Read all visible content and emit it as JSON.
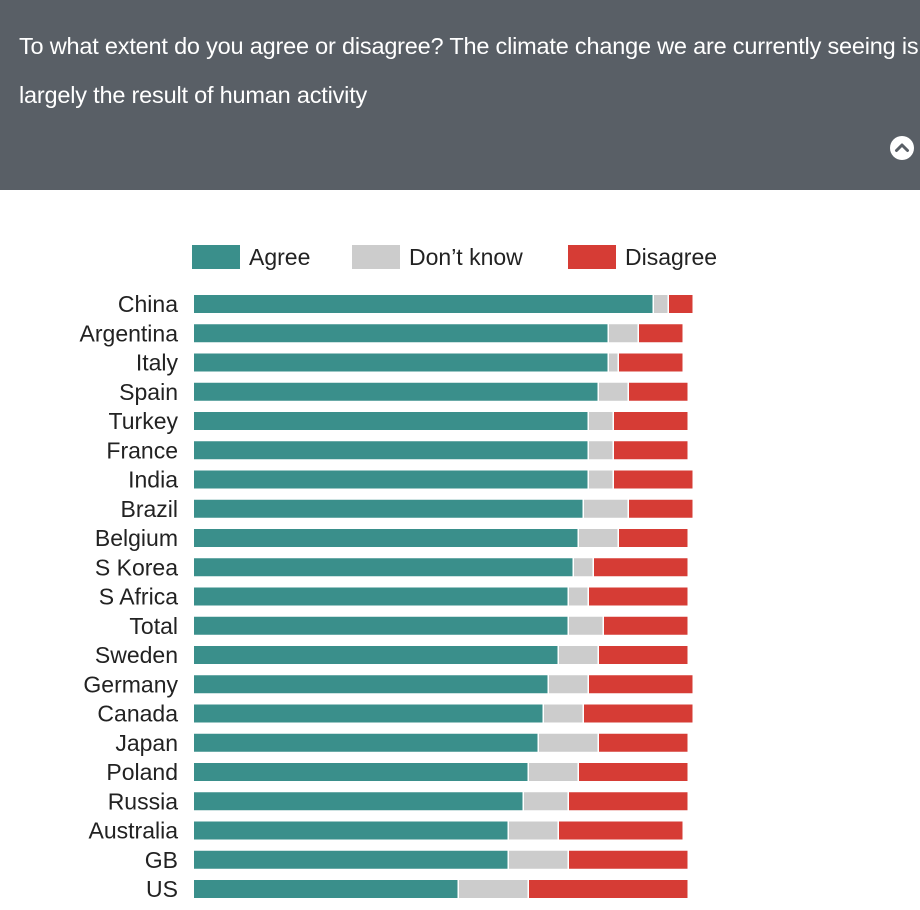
{
  "header": {
    "title": "To what extent do you agree or disagree? The climate change we are currently seeing is largely the result of human activity",
    "collapse_icon": "chevron-up-icon"
  },
  "legend": [
    {
      "label": "Agree",
      "color": "#3a8f8b"
    },
    {
      "label": "Don’t know",
      "color": "#cccccc"
    },
    {
      "label": "Disagree",
      "color": "#d63c35"
    }
  ],
  "chart_data": {
    "type": "bar",
    "orientation": "horizontal",
    "stacked": true,
    "title": "To what extent do you agree or disagree? The climate change we are currently seeing is largely the result of human activity",
    "categories": [
      "China",
      "Argentina",
      "Italy",
      "Spain",
      "Turkey",
      "France",
      "India",
      "Brazil",
      "Belgium",
      "S Korea",
      "S Africa",
      "Total",
      "Sweden",
      "Germany",
      "Canada",
      "Japan",
      "Poland",
      "Russia",
      "Australia",
      "GB",
      "US"
    ],
    "series": [
      {
        "name": "Agree",
        "color": "#3a8f8b",
        "values": [
          92,
          83,
          83,
          81,
          79,
          79,
          79,
          78,
          77,
          76,
          75,
          75,
          73,
          71,
          70,
          69,
          67,
          66,
          63,
          63,
          53
        ]
      },
      {
        "name": "Don’t know",
        "color": "#cccccc",
        "values": [
          3,
          6,
          2,
          6,
          5,
          5,
          5,
          9,
          8,
          4,
          4,
          7,
          8,
          8,
          8,
          12,
          10,
          9,
          10,
          12,
          14
        ]
      },
      {
        "name": "Disagree",
        "color": "#d63c35",
        "values": [
          5,
          9,
          13,
          12,
          15,
          15,
          16,
          13,
          14,
          19,
          20,
          17,
          18,
          21,
          22,
          18,
          22,
          24,
          25,
          24,
          32
        ]
      }
    ],
    "xlim": [
      0,
      100
    ],
    "xlabel": "",
    "ylabel": "",
    "legend_position": "top",
    "grid": false
  }
}
